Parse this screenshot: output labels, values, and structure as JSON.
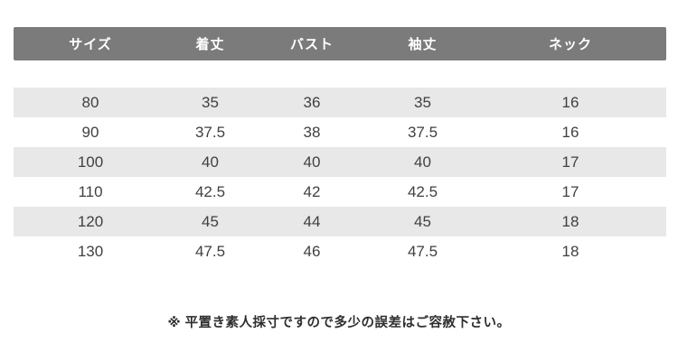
{
  "chart_data": {
    "type": "table",
    "title": "",
    "columns": [
      "サイズ",
      "着丈",
      "バスト",
      "袖丈",
      "ネック"
    ],
    "rows": [
      [
        "80",
        "35",
        "36",
        "35",
        "16"
      ],
      [
        "90",
        "37.5",
        "38",
        "37.5",
        "16"
      ],
      [
        "100",
        "40",
        "40",
        "40",
        "17"
      ],
      [
        "110",
        "42.5",
        "42",
        "42.5",
        "17"
      ],
      [
        "120",
        "45",
        "44",
        "45",
        "18"
      ],
      [
        "130",
        "47.5",
        "46",
        "47.5",
        "18"
      ]
    ]
  },
  "note": "※ 平置き素人採寸ですので多少の誤差はご容赦下さい。",
  "colors": {
    "header_bg": "#7b7b7b",
    "header_text": "#ffffff",
    "row_alt_bg": "#e8e8e8",
    "cell_text": "#404040",
    "note_text": "#2e2e2e",
    "page_bg": "#ffffff"
  }
}
